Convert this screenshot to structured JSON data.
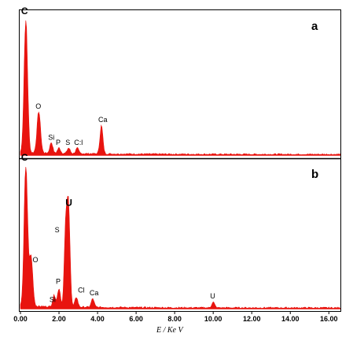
{
  "colors": {
    "spectrum": "#e8140f",
    "axis": "#000000"
  },
  "chart_data": {
    "type": "area",
    "xlabel": "E / Ke V",
    "xlim": [
      0,
      16.6
    ],
    "x_ticks": [
      "0.00",
      "2.00",
      "4.00",
      "6.00",
      "8.00",
      "10.00",
      "12.00",
      "14.00",
      "16.00"
    ],
    "grid": false,
    "panels": [
      {
        "label": "a",
        "peaks": [
          {
            "name": "C",
            "energy": 0.28,
            "height": 1.0
          },
          {
            "name": "O",
            "energy": 0.95,
            "height": 0.31
          },
          {
            "name": "Si",
            "energy": 1.6,
            "height": 0.08
          },
          {
            "name": "P",
            "energy": 2.0,
            "height": 0.04
          },
          {
            "name": "S",
            "energy": 2.5,
            "height": 0.04
          },
          {
            "name": "C:l",
            "energy": 2.95,
            "height": 0.04
          },
          {
            "name": "Ca",
            "energy": 4.2,
            "height": 0.21
          }
        ]
      },
      {
        "label": "b",
        "peaks": [
          {
            "name": "C",
            "energy": 0.28,
            "height": 1.0
          },
          {
            "name": "O",
            "energy": 0.55,
            "height": 0.35
          },
          {
            "name": "Si",
            "energy": 1.75,
            "height": 0.08
          },
          {
            "name": "P",
            "energy": 2.0,
            "height": 0.13
          },
          {
            "name": "S",
            "energy": 2.35,
            "height": 0.56
          },
          {
            "name": "U",
            "energy": 2.5,
            "height": 0.68
          },
          {
            "name": "Cl",
            "energy": 2.9,
            "height": 0.07
          },
          {
            "name": "Ca",
            "energy": 3.75,
            "height": 0.06
          },
          {
            "name": "U",
            "energy": 10.0,
            "height": 0.04
          }
        ]
      }
    ]
  }
}
